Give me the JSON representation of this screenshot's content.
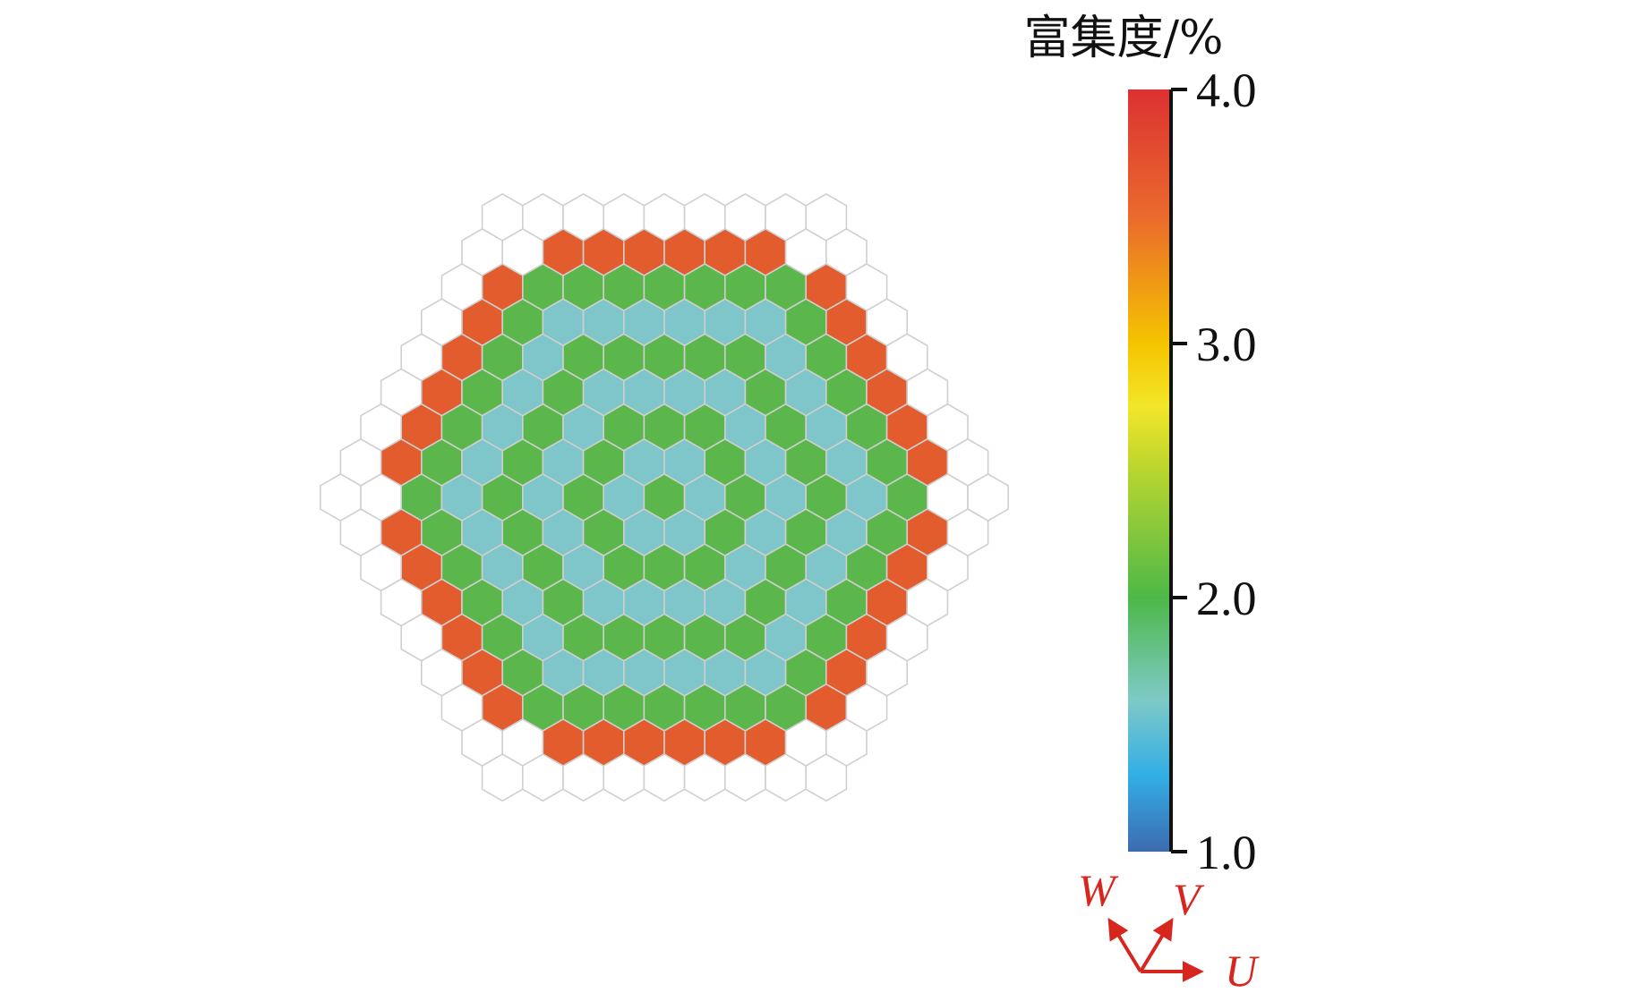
{
  "diagram": {
    "type": "hexagonal-core-enrichment-map",
    "rings": 8,
    "ring_categories": [
      "green",
      "blue",
      "green",
      "blue",
      "green",
      "blue",
      "green",
      "orange",
      "empty"
    ],
    "category_colors": {
      "green": "#5bb74b",
      "blue": "#7ec6c9",
      "orange": "#e35c2e",
      "empty": "#ffffff"
    },
    "cell_border_color": "#cfcfcf",
    "corner_cells_empty_ring": 7
  },
  "colorbar": {
    "title": "富集度/%",
    "min": 1.0,
    "max": 4.0,
    "ticks": [
      {
        "value": 1.0,
        "label": "1.0"
      },
      {
        "value": 2.0,
        "label": "2.0"
      },
      {
        "value": 3.0,
        "label": "3.0"
      },
      {
        "value": 4.0,
        "label": "4.0"
      }
    ],
    "gradient_stops": [
      {
        "value": 1.0,
        "color": "#3d6bb0"
      },
      {
        "value": 1.3,
        "color": "#33aee6"
      },
      {
        "value": 1.6,
        "color": "#7ecac6"
      },
      {
        "value": 2.0,
        "color": "#4db848"
      },
      {
        "value": 2.5,
        "color": "#b9d52f"
      },
      {
        "value": 2.75,
        "color": "#f2e629"
      },
      {
        "value": 3.0,
        "color": "#f5c400"
      },
      {
        "value": 3.5,
        "color": "#ea6a2c"
      },
      {
        "value": 4.0,
        "color": "#dc3132"
      }
    ]
  },
  "axes": {
    "color": "#d7261e",
    "labels": {
      "u": "U",
      "v": "V",
      "w": "W"
    }
  }
}
